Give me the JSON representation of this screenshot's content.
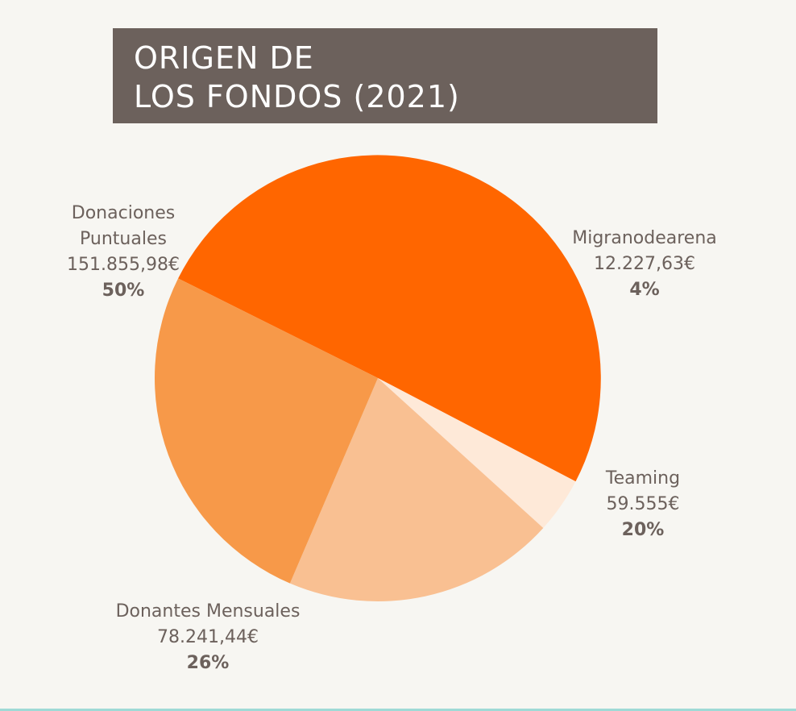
{
  "title": {
    "line1": "ORIGEN DE",
    "line2": "LOS FONDOS (2021)"
  },
  "chart_data": {
    "type": "pie",
    "slices": [
      {
        "name": "Donaciones Puntuales",
        "name_lines": [
          "Donaciones",
          "Puntuales"
        ],
        "amount": "151.855,98€",
        "percent_label": "50%",
        "value": 151855.98,
        "color": "#ff6600"
      },
      {
        "name": "Migranodearena",
        "name_lines": [
          "Migranodearena"
        ],
        "amount": "12.227,63€",
        "percent_label": "4%",
        "value": 12227.63,
        "color": "#fee9d8"
      },
      {
        "name": "Teaming",
        "name_lines": [
          "Teaming"
        ],
        "amount": "59.555€",
        "percent_label": "20%",
        "value": 59555,
        "color": "#f9c092"
      },
      {
        "name": "Donantes Mensuales",
        "name_lines": [
          "Donantes Mensuales"
        ],
        "amount": "78.241,44€",
        "percent_label": "26%",
        "value": 78241.44,
        "color": "#f79949"
      }
    ]
  }
}
